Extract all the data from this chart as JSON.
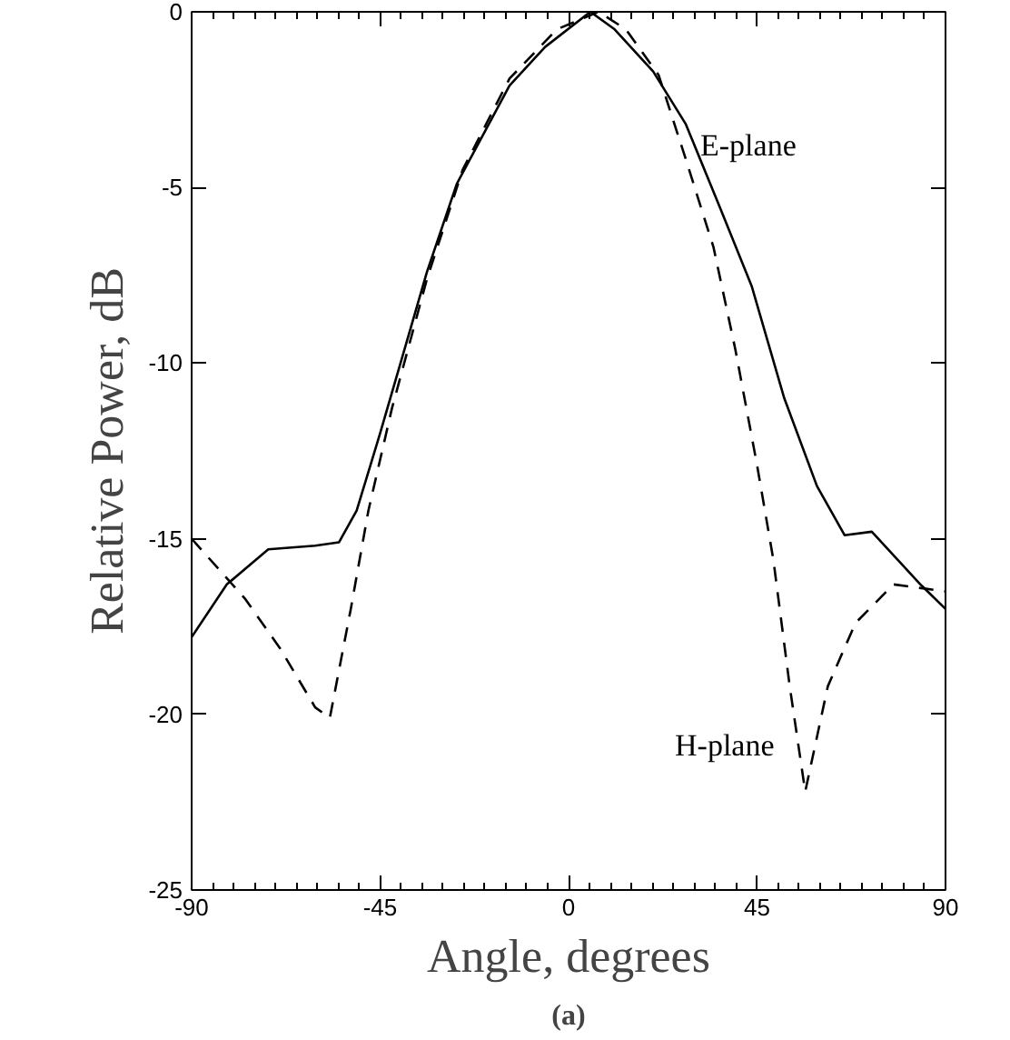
{
  "chart_data": {
    "type": "line",
    "xlabel": "Angle, degrees",
    "ylabel": "Relative Power, dB",
    "xlim": [
      -90,
      90
    ],
    "ylim": [
      -25,
      0
    ],
    "xticks": [
      -90,
      -45,
      0,
      45,
      90
    ],
    "yticks": [
      -25,
      -20,
      -15,
      -10,
      -5,
      0
    ],
    "grid": false,
    "marker": "none",
    "annotations": [
      "(a)"
    ],
    "series": [
      {
        "name": "E-plane",
        "color": "#000000",
        "line_style": "solid",
        "x": [
          -90,
          -81.6,
          -71.7,
          -60.5,
          -54.8,
          -50.6,
          -45,
          -39.4,
          -33.8,
          -26.7,
          -14.1,
          -5.6,
          5.2,
          11,
          20.2,
          28,
          35.9,
          43.7,
          51.5,
          59.3,
          65.9,
          72.4,
          84,
          90
        ],
        "values": [
          -17.8,
          -16.3,
          -15.3,
          -15.2,
          -15.1,
          -14.2,
          -12.0,
          -9.7,
          -7.4,
          -4.9,
          -2.1,
          -1.0,
          0,
          -0.5,
          -1.7,
          -3.2,
          -5.5,
          -7.8,
          -11.0,
          -13.5,
          -14.9,
          -14.8,
          -16.3,
          -17.0
        ]
      },
      {
        "name": "H-plane",
        "color": "#000000",
        "line_style": "dashed",
        "x": [
          -90,
          -77.3,
          -69,
          -60.5,
          -57,
          -52,
          -47.8,
          -42.2,
          -33.8,
          -25.3,
          -14.1,
          -2.8,
          7.2,
          13.7,
          21.5,
          28,
          34.6,
          39.8,
          45,
          48.9,
          52.8,
          56.5,
          61.9,
          68.5,
          77.6,
          90
        ],
        "values": [
          -15.0,
          -16.7,
          -18.1,
          -19.8,
          -20.1,
          -17.0,
          -14.2,
          -11.3,
          -7.6,
          -4.5,
          -1.9,
          -0.5,
          0,
          -0.5,
          -1.8,
          -4.2,
          -6.7,
          -9.6,
          -12.9,
          -15.6,
          -19.2,
          -22.2,
          -19.2,
          -17.4,
          -16.3,
          -16.5
        ]
      }
    ]
  }
}
